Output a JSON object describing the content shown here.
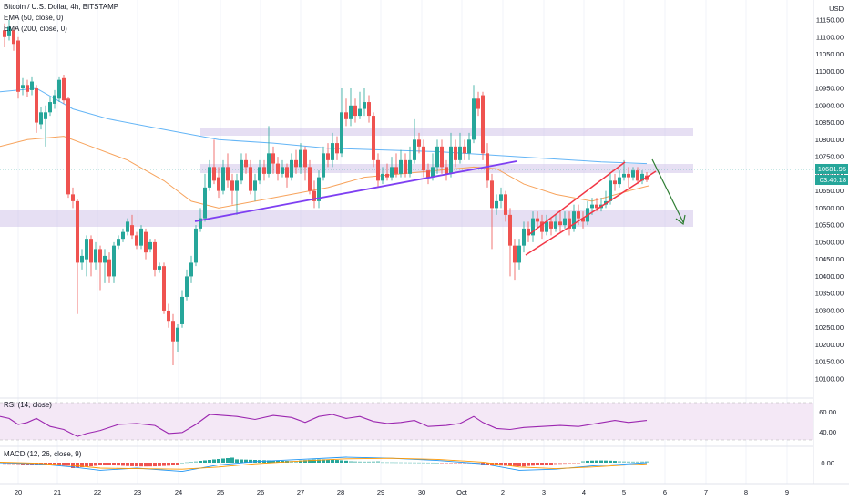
{
  "legend": {
    "title": "Bitcoin / U.S. Dollar, 4h, BITSTAMP",
    "ema50": "EMA (50, close, 0)",
    "ema200": "EMA (200, close, 0)",
    "rsi": "RSI (14, close)",
    "macd": "MACD (12, 26, close, 9)"
  },
  "axis": {
    "currency": "USD",
    "price_ticks": [
      "11150.00",
      "11100.00",
      "11050.00",
      "11000.00",
      "10950.00",
      "10900.00",
      "10850.00",
      "10800.00",
      "10750.00",
      "10700.00",
      "10650.00",
      "10600.00",
      "10550.00",
      "10500.00",
      "10450.00",
      "10400.00",
      "10350.00",
      "10300.00",
      "10250.00",
      "10200.00",
      "10150.00",
      "10100.00"
    ],
    "rsi_ticks": [
      "60.00",
      "40.00"
    ],
    "macd_ticks": [
      "0.00"
    ],
    "time_ticks": [
      "20",
      "21",
      "22",
      "23",
      "24",
      "25",
      "26",
      "27",
      "28",
      "29",
      "30",
      "Oct",
      "2",
      "3",
      "4",
      "5",
      "6",
      "7",
      "8",
      "9"
    ]
  },
  "price_badge": {
    "price": "10681.95",
    "countdown": "03:40:18"
  },
  "colors": {
    "up": "#26a69a",
    "down": "#ef5350",
    "ema50": "#f7a35c",
    "ema200": "#64b5f6",
    "zone": "#d1c4e9",
    "trendline": "#7e3ff2",
    "channel": "#f23645",
    "arrow": "#2e7d32",
    "rsi": "#9c27b0",
    "rsi_band": "#f3e5f5",
    "macd": "#2196f3",
    "signal": "#ff9800"
  }
}
